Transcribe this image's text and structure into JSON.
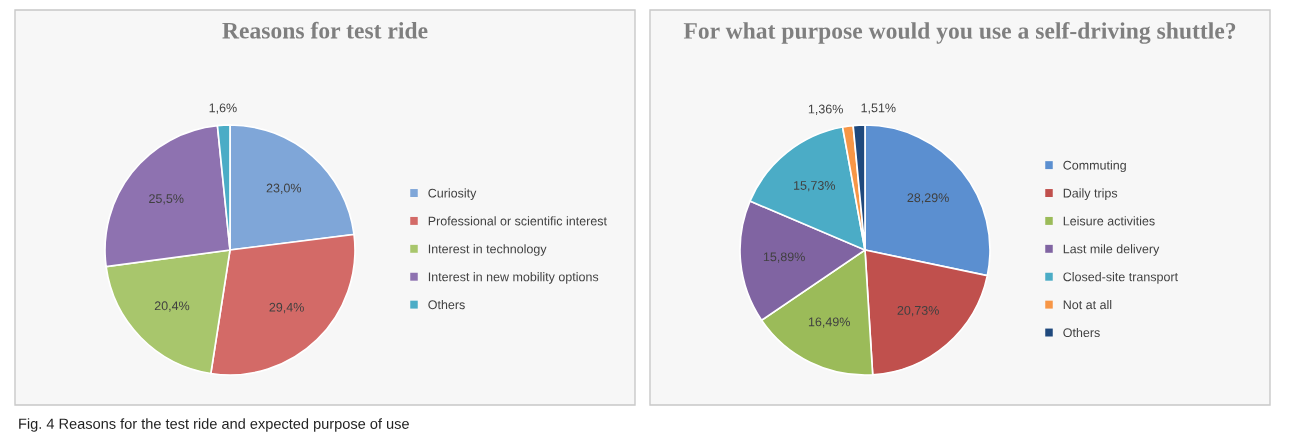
{
  "chart_data": [
    {
      "type": "pie",
      "title": "Reasons for test ride",
      "categories": [
        "Curiosity",
        "Professional or scientific interest",
        "Interest in technology",
        "Interest in new mobility options",
        "Others"
      ],
      "values": [
        23.0,
        29.4,
        20.4,
        25.5,
        1.6
      ],
      "value_labels": [
        "23,0%",
        "29,4%",
        "20,4%",
        "25,5%",
        "1,6%"
      ],
      "colors": [
        "#7fa6d8",
        "#d36a67",
        "#a8c66c",
        "#8e72b0",
        "#4bacc6"
      ],
      "legend": "right",
      "annotations": [
        "Fig. 4 Reasons for the test ride and expected purpose of use"
      ]
    },
    {
      "type": "pie",
      "title": "For what purpose would you use a self-driving shuttle?",
      "categories": [
        "Commuting",
        "Daily trips",
        "Leisure activities",
        "Last mile delivery",
        "Closed-site transport",
        "Not at all",
        "Others"
      ],
      "values": [
        28.29,
        20.73,
        16.49,
        15.89,
        15.73,
        1.36,
        1.51
      ],
      "value_labels": [
        "28,29%",
        "20,73%",
        "16,49%",
        "15,89%",
        "15,73%",
        "1,36%",
        "1,51%"
      ],
      "colors": [
        "#5b8fd0",
        "#c0504d",
        "#9bbb59",
        "#8064a2",
        "#4bacc6",
        "#f79646",
        "#1f497d"
      ],
      "legend": "right"
    }
  ]
}
